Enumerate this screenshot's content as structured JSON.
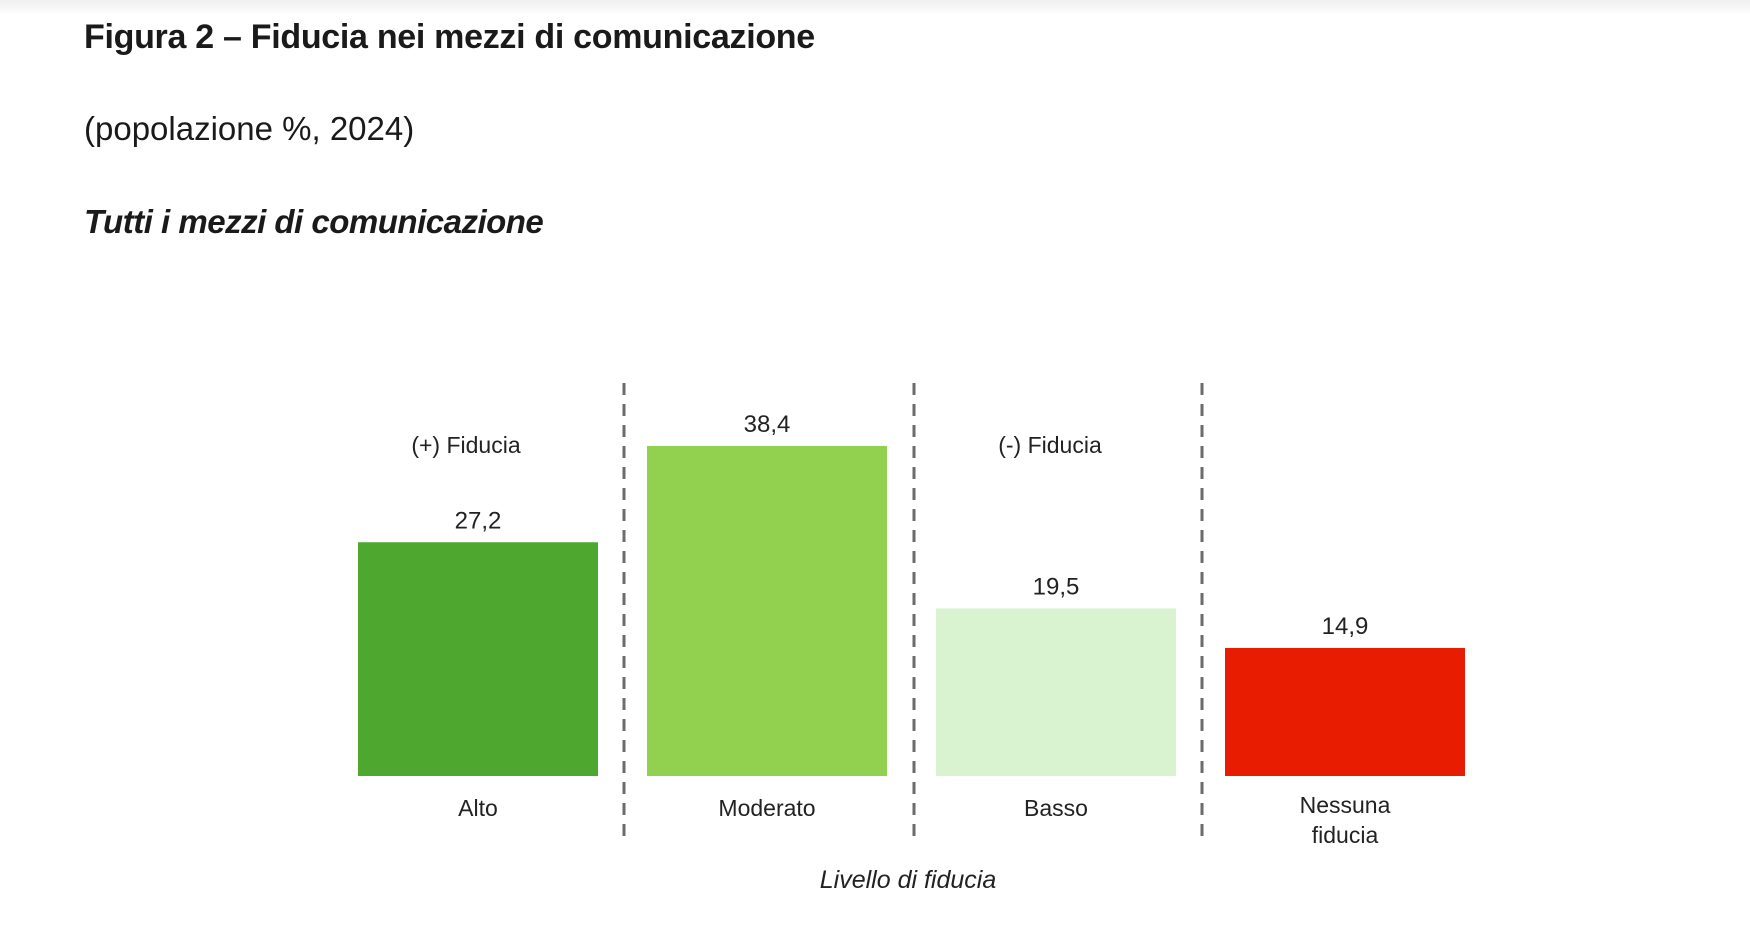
{
  "header": {
    "title": "Figura 2 – Fiducia nei mezzi di comunicazione",
    "subtitle": "(popolazione %, 2024)",
    "section": "Tutti i mezzi di comunicazione"
  },
  "chart_data": {
    "type": "bar",
    "categories": [
      "Alto",
      "Moderato",
      "Basso",
      "Nessuna fiducia"
    ],
    "category_lines": [
      [
        "Alto"
      ],
      [
        "Moderato"
      ],
      [
        "Basso"
      ],
      [
        "Nessuna",
        "fiducia"
      ]
    ],
    "values": [
      27.2,
      38.4,
      19.5,
      14.9
    ],
    "value_labels": [
      "27,2",
      "38,4",
      "19,5",
      "14,9"
    ],
    "colors": [
      "#4ea72e",
      "#92d050",
      "#d9f2d0",
      "#e81c00"
    ],
    "group_labels": [
      "(+) Fiducia",
      "(-) Fiducia"
    ],
    "xlabel": "Livello di fiducia",
    "ylabel": "",
    "ylim": [
      0,
      38.4
    ],
    "grid": false,
    "legend": "none"
  }
}
